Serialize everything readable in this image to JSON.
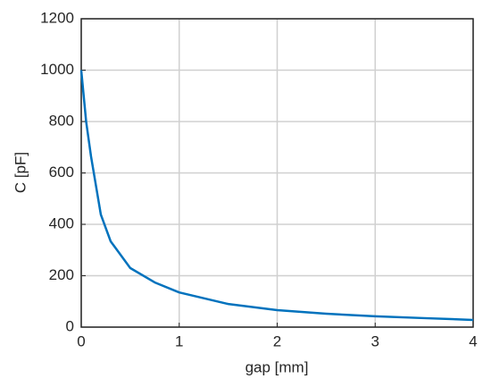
{
  "chart_data": {
    "type": "line",
    "x_label": "gap [mm]",
    "y_label": "C [pF]",
    "x": [
      0,
      0.05,
      0.1,
      0.2,
      0.3,
      0.5,
      0.75,
      1,
      1.5,
      2,
      2.5,
      3,
      3.5,
      4
    ],
    "series": [
      {
        "color": "#0072bd",
        "values": [
          1000,
          800,
          664,
          438,
          334,
          230,
          174,
          135,
          90,
          66,
          52,
          42,
          35,
          28
        ]
      }
    ],
    "xlim": [
      0,
      4
    ],
    "xticks": [
      0,
      1,
      2,
      3,
      4
    ],
    "ylim": [
      0,
      1200
    ],
    "yticks": [
      0,
      200,
      400,
      600,
      800,
      1000,
      1200
    ],
    "grid": true
  }
}
